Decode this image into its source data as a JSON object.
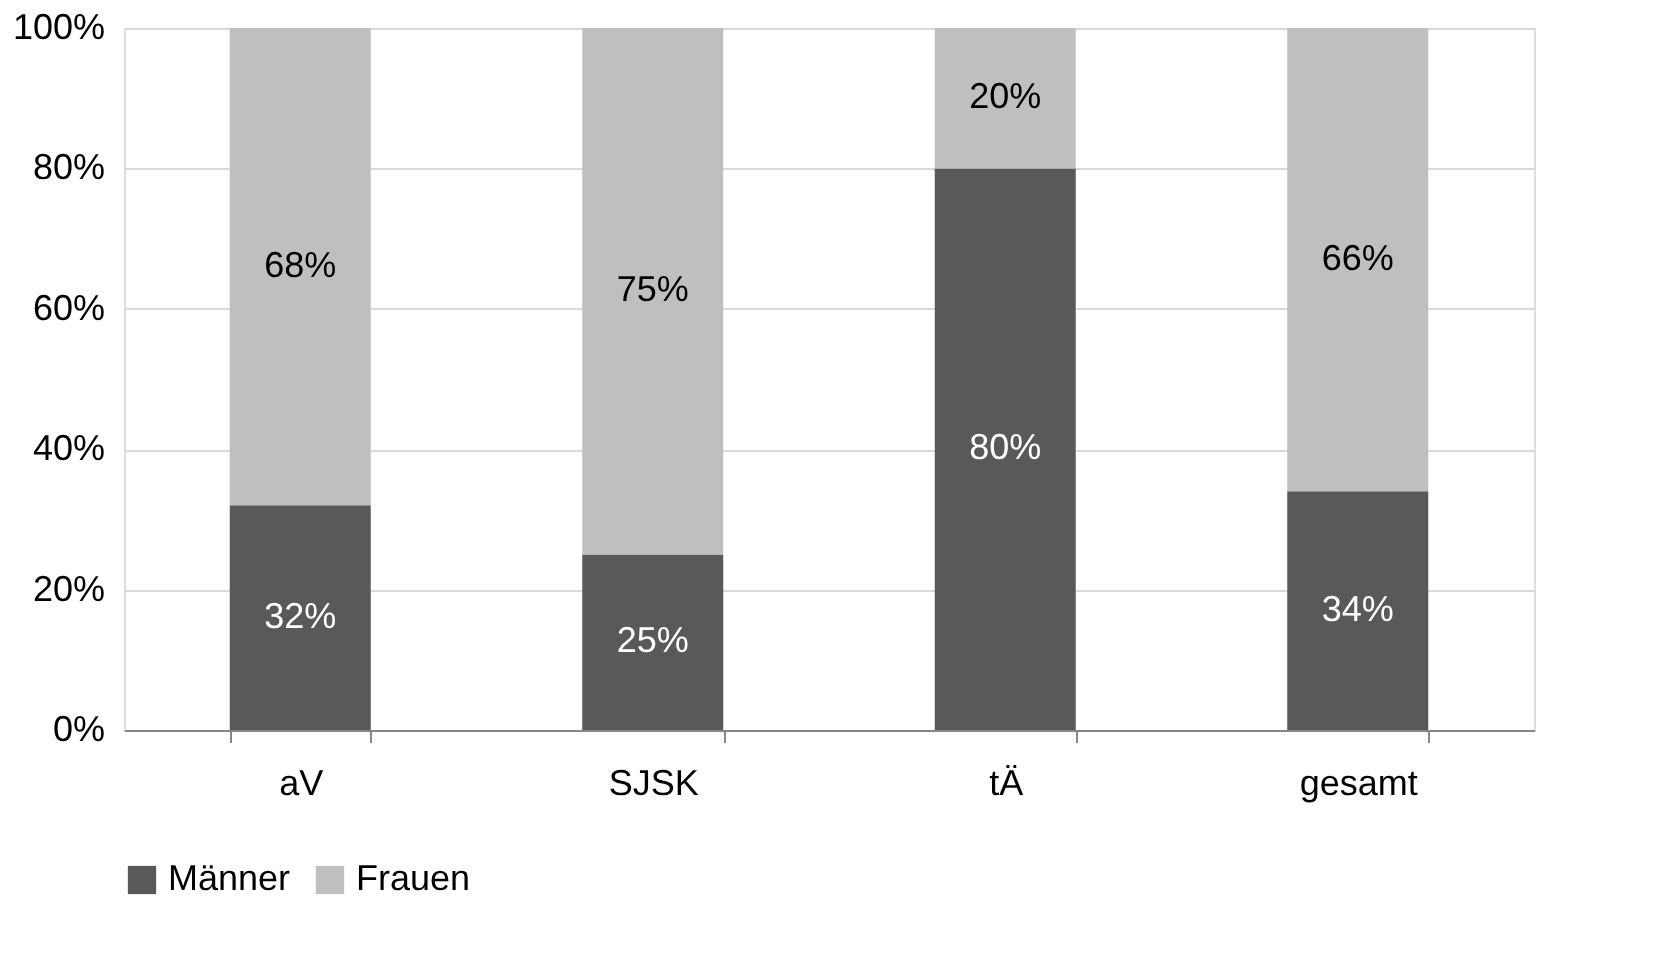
{
  "chart_data": {
    "type": "bar",
    "stacked": true,
    "categories": [
      "aV",
      "SJSK",
      "tÄ",
      "gesamt"
    ],
    "series": [
      {
        "name": "Männer",
        "color": "#595959",
        "values": [
          32,
          25,
          80,
          34
        ],
        "value_labels": [
          "32%",
          "25%",
          "80%",
          "34%"
        ]
      },
      {
        "name": "Frauen",
        "color": "#bfbfbf",
        "values": [
          68,
          75,
          20,
          66
        ],
        "value_labels": [
          "68%",
          "75%",
          "20%",
          "66%"
        ]
      }
    ],
    "ylim": [
      0,
      100
    ],
    "yticks": [
      {
        "value": 0,
        "label": "0%"
      },
      {
        "value": 20,
        "label": "20%"
      },
      {
        "value": 40,
        "label": "40%"
      },
      {
        "value": 60,
        "label": "60%"
      },
      {
        "value": 80,
        "label": "80%"
      },
      {
        "value": 100,
        "label": "100%"
      }
    ],
    "grid": "y",
    "legend": "bottom"
  }
}
